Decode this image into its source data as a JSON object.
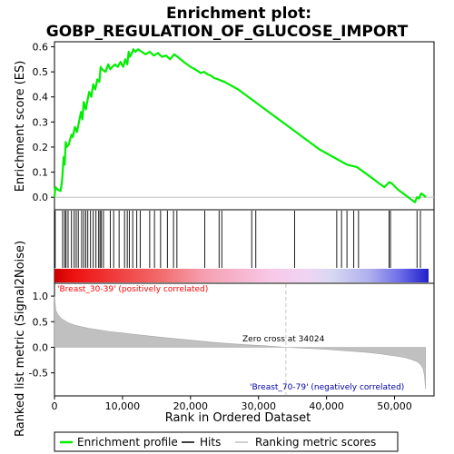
{
  "title_line1": "Enrichment plot:",
  "title_line2": "GOBP_REGULATION_OF_GLUCOSE_IMPORT",
  "colors": {
    "es_line": "#00ee00",
    "hit_line": "#000000",
    "metric_fill": "#c0c0c0",
    "positive_label": "#ff0000",
    "negative_label": "#0000aa",
    "zero_line": "#c0c0c0"
  },
  "chart_data": [
    {
      "type": "line",
      "panel": "enrichment",
      "ylabel": "Enrichment score (ES)",
      "xlim": [
        0,
        55000
      ],
      "ylim": [
        -0.05,
        0.62
      ],
      "yticks": [
        "0.0",
        "0.1",
        "0.2",
        "0.3",
        "0.4",
        "0.5",
        "0.6"
      ],
      "ytick_values": [
        0.0,
        0.1,
        0.2,
        0.3,
        0.4,
        0.5,
        0.6
      ],
      "grid": false,
      "series": [
        {
          "name": "Enrichment profile",
          "x": [
            0,
            150,
            500,
            900,
            1100,
            1200,
            1350,
            1500,
            1650,
            1800,
            2100,
            2500,
            2700,
            3000,
            3300,
            3600,
            3900,
            4100,
            4300,
            4600,
            4800,
            5100,
            5400,
            5700,
            6000,
            6300,
            6600,
            6800,
            7000,
            7500,
            7900,
            8200,
            8500,
            8900,
            9300,
            9700,
            10100,
            10400,
            10700,
            10900,
            11100,
            11300,
            11600,
            11900,
            12300,
            12800,
            13400,
            14000,
            14600,
            15200,
            15800,
            16400,
            17000,
            17600,
            18100,
            19000,
            20000,
            21000,
            21500,
            22000,
            22500,
            23000,
            23500,
            24100,
            24500,
            25000,
            27000,
            29000,
            31000,
            33000,
            35000,
            37000,
            39000,
            41000,
            43000,
            44500,
            46000,
            47500,
            48500,
            49200,
            49600,
            50500,
            51500,
            52500,
            53000,
            53300,
            53600,
            53900,
            54200,
            54600
          ],
          "y": [
            0.0,
            0.04,
            0.03,
            0.025,
            0.06,
            0.1,
            0.16,
            0.13,
            0.22,
            0.2,
            0.21,
            0.25,
            0.24,
            0.28,
            0.26,
            0.3,
            0.34,
            0.31,
            0.38,
            0.35,
            0.38,
            0.42,
            0.4,
            0.45,
            0.43,
            0.47,
            0.46,
            0.52,
            0.51,
            0.5,
            0.53,
            0.51,
            0.52,
            0.53,
            0.52,
            0.54,
            0.52,
            0.55,
            0.53,
            0.58,
            0.56,
            0.57,
            0.59,
            0.58,
            0.59,
            0.58,
            0.57,
            0.58,
            0.565,
            0.575,
            0.56,
            0.565,
            0.55,
            0.57,
            0.56,
            0.54,
            0.52,
            0.505,
            0.495,
            0.5,
            0.49,
            0.485,
            0.475,
            0.47,
            0.465,
            0.46,
            0.43,
            0.39,
            0.35,
            0.31,
            0.27,
            0.23,
            0.19,
            0.16,
            0.13,
            0.12,
            0.09,
            0.06,
            0.04,
            0.06,
            0.055,
            0.03,
            0.01,
            -0.01,
            -0.02,
            0.0,
            -0.005,
            0.015,
            0.01,
            0.0
          ]
        }
      ]
    },
    {
      "type": "heatmap",
      "panel": "hits",
      "hits_x": [
        100,
        1200,
        1500,
        1700,
        2000,
        2500,
        2900,
        3200,
        3500,
        4000,
        4300,
        4600,
        4900,
        5300,
        5700,
        6100,
        6500,
        6700,
        6900,
        7200,
        8200,
        8700,
        9500,
        10300,
        10700,
        11000,
        11500,
        12100,
        12600,
        14000,
        14700,
        15600,
        16600,
        17500,
        18000,
        22100,
        24200,
        24600,
        29000,
        29600,
        35300,
        41500,
        42200,
        43000,
        44000,
        44700,
        49200,
        49400,
        53300,
        53800
      ]
    },
    {
      "type": "area",
      "panel": "ranking metric",
      "ylabel": "Ranked list metric (Signal2Noise)",
      "xlabel": "Rank in Ordered Dataset",
      "xlim": [
        0,
        55000
      ],
      "ylim": [
        -0.95,
        1.25
      ],
      "yticks": [
        "-0.5",
        "0.0",
        "0.5",
        "1.0"
      ],
      "ytick_values": [
        -0.5,
        0.0,
        0.5,
        1.0
      ],
      "xticks": [
        "0",
        "10,000",
        "20,000",
        "30,000",
        "40,000",
        "50,000"
      ],
      "xtick_values": [
        0,
        10000,
        20000,
        30000,
        40000,
        50000
      ],
      "x": [
        0,
        200,
        500,
        1000,
        2000,
        3000,
        5000,
        8000,
        12000,
        16000,
        20000,
        24000,
        28000,
        31000,
        34024,
        37000,
        40000,
        43000,
        46000,
        48000,
        50000,
        51500,
        52500,
        53300,
        53800,
        54200,
        54400,
        54550
      ],
      "values": [
        1.0,
        0.72,
        0.64,
        0.56,
        0.48,
        0.43,
        0.37,
        0.31,
        0.25,
        0.19,
        0.14,
        0.09,
        0.05,
        0.03,
        0.0,
        -0.02,
        -0.04,
        -0.07,
        -0.1,
        -0.13,
        -0.17,
        -0.2,
        -0.24,
        -0.28,
        -0.33,
        -0.42,
        -0.55,
        -0.82
      ],
      "zero_cross": 34024,
      "annotations": {
        "zero_cross_text": "Zero cross at 34024",
        "positive_text": "'Breast_30-39' (positively correlated)",
        "negative_text": "'Breast_70-79' (negatively correlated)"
      }
    }
  ],
  "legend": {
    "items": [
      {
        "label": "Enrichment profile",
        "color": "#00ee00"
      },
      {
        "label": "Hits",
        "color": "#000000"
      },
      {
        "label": "Ranking metric scores",
        "color": "#c0c0c0"
      }
    ]
  }
}
